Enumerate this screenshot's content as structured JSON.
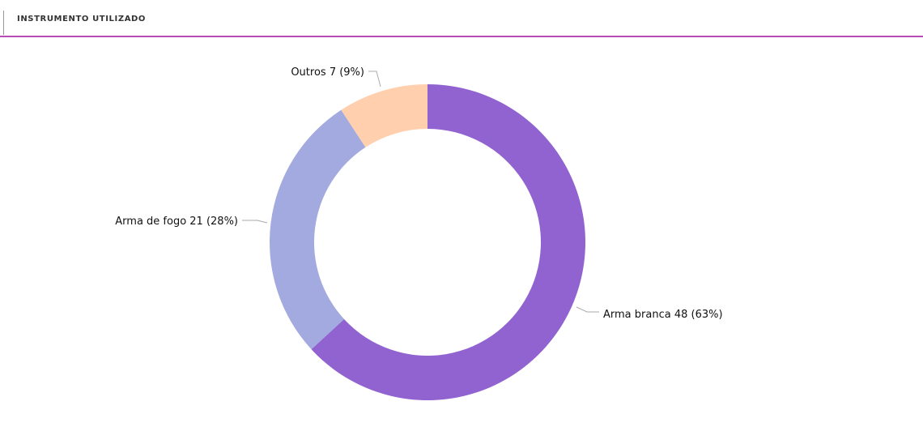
{
  "header": {
    "title": "INSTRUMENTO UTILIZADO"
  },
  "chart_data": {
    "type": "pie",
    "variant": "donut",
    "title": "INSTRUMENTO UTILIZADO",
    "categories": [
      "Arma branca",
      "Arma de fogo",
      "Outros"
    ],
    "values": [
      48,
      21,
      7
    ],
    "percent_labels": [
      "63%",
      "28%",
      "9%"
    ],
    "labels": [
      "Arma branca 48 (63%)",
      "Arma de fogo 21 (28%)",
      "Outros 7 (9%)"
    ],
    "colors": [
      "#9163D0",
      "#A3AADF",
      "#FFCFAE"
    ],
    "legend": "none"
  }
}
